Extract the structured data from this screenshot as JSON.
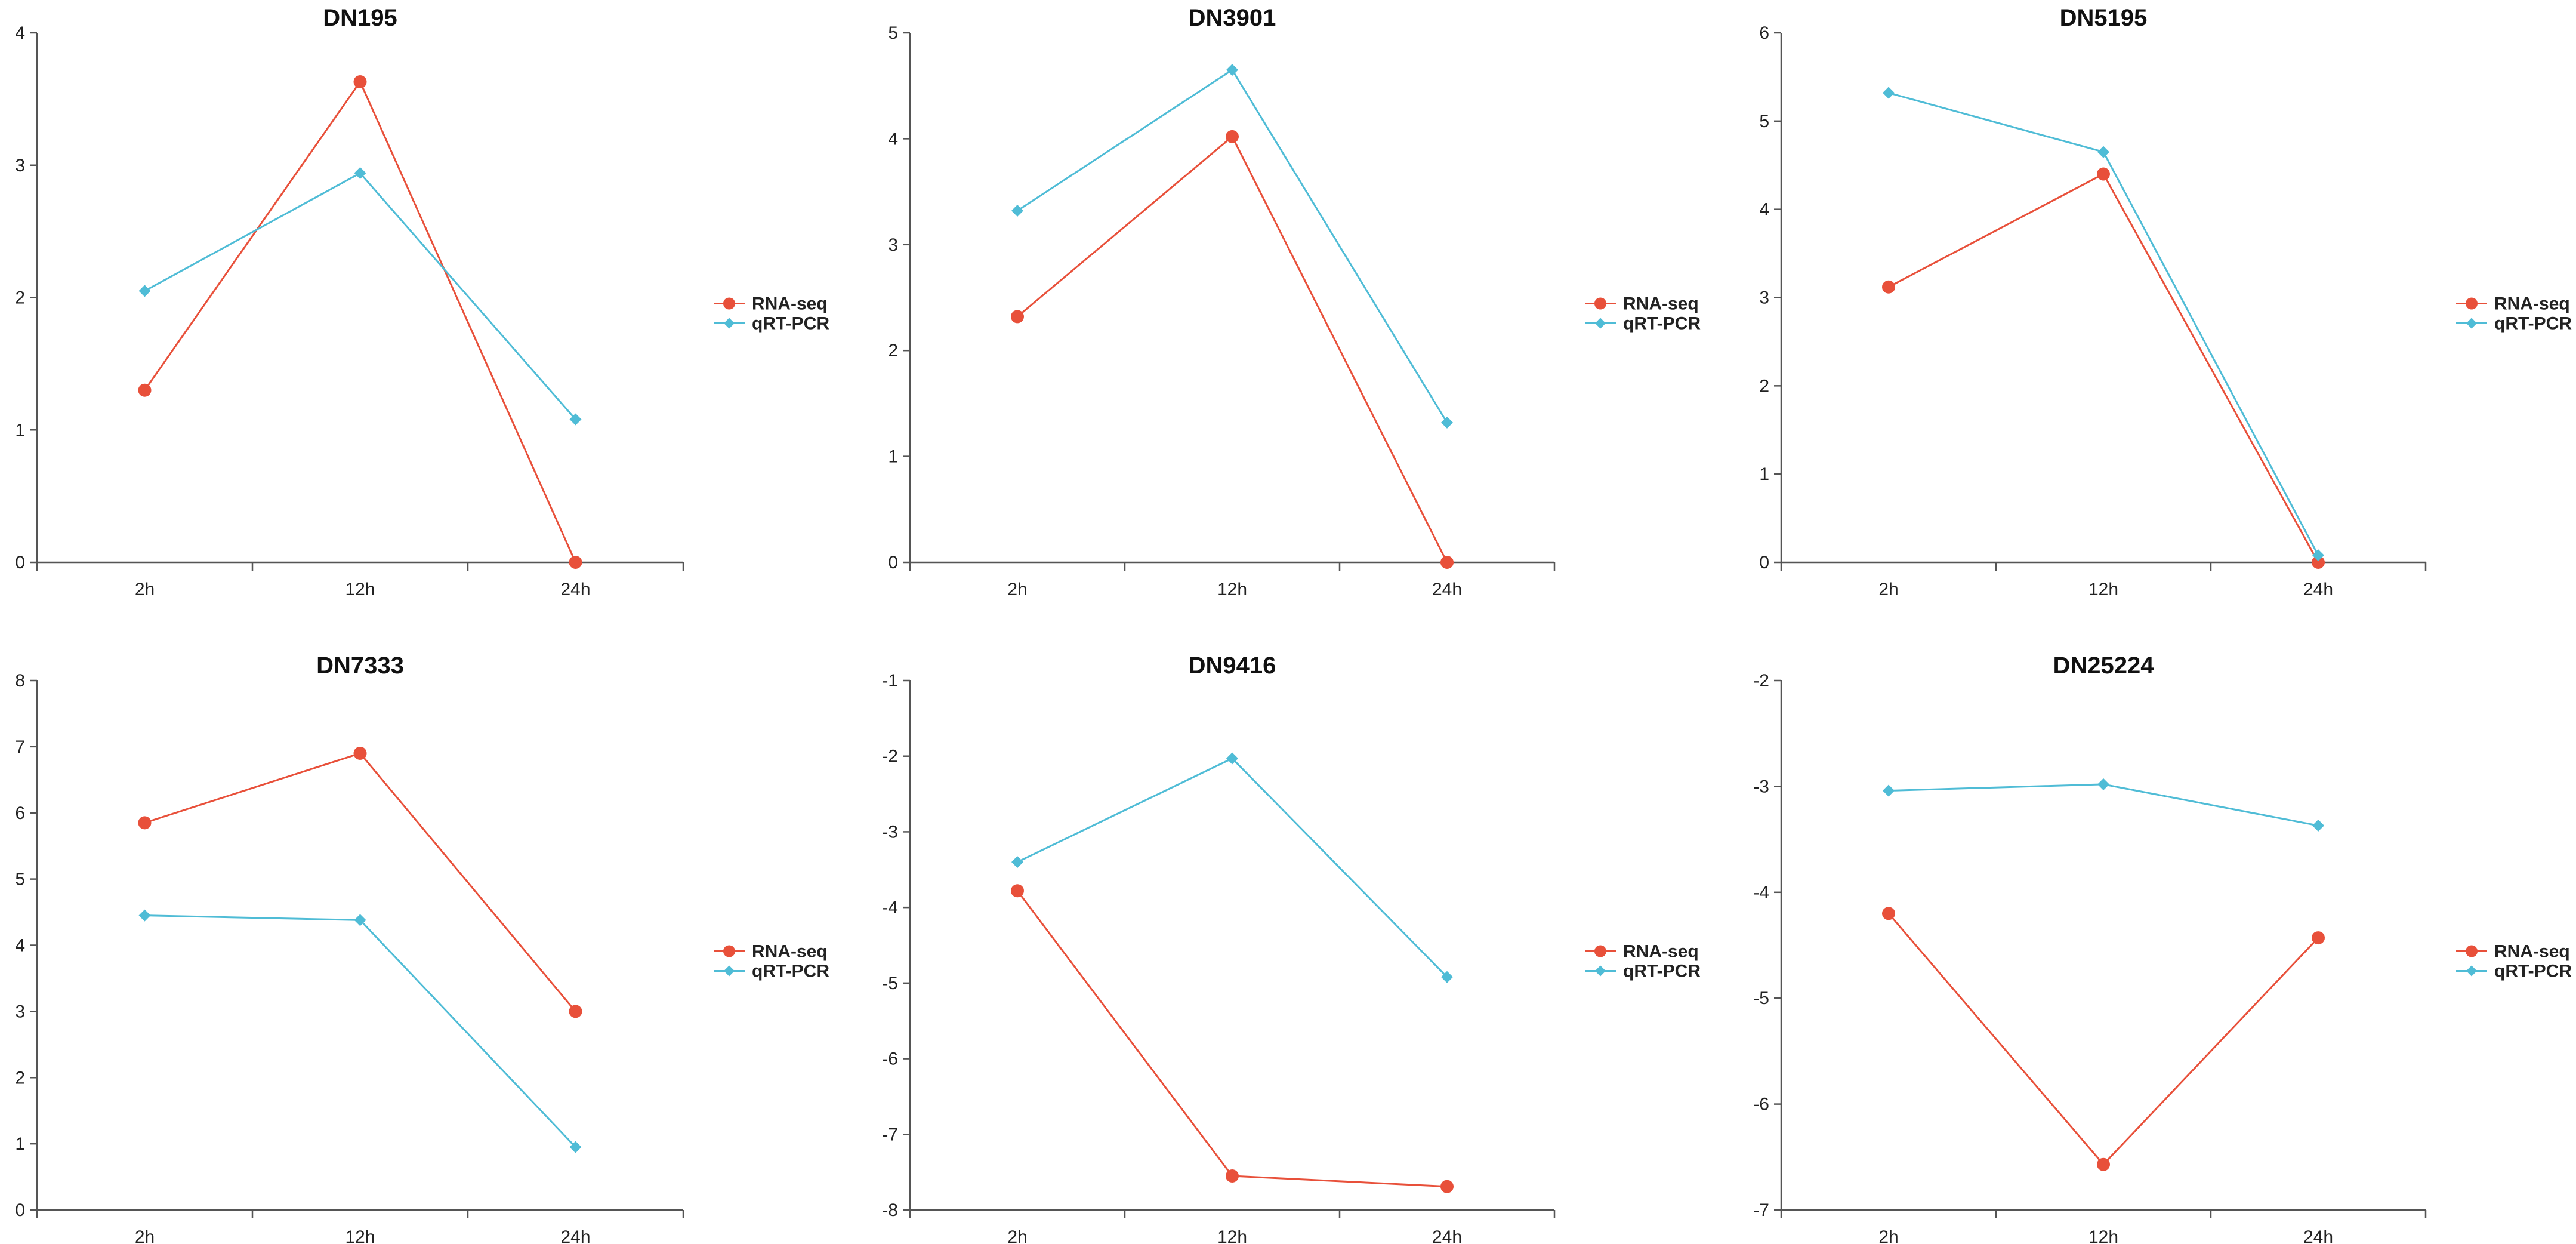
{
  "colors": {
    "rna_seq": "#e8503a",
    "qrt_pcr": "#4fbcd6",
    "axis": "#555555"
  },
  "legend": {
    "items": [
      "RNA-seq",
      "qRT-PCR"
    ],
    "placement": "right"
  },
  "chart_data": [
    {
      "type": "line",
      "title": "DN195",
      "categories": [
        "2h",
        "12h",
        "24h"
      ],
      "yticks": [
        "0",
        "1",
        "2",
        "3",
        "4"
      ],
      "ylim": [
        0,
        4
      ],
      "series": [
        {
          "name": "RNA-seq",
          "marker": "circle",
          "values": [
            1.3,
            3.63,
            0.0
          ]
        },
        {
          "name": "qRT-PCR",
          "marker": "diamond",
          "values": [
            2.05,
            2.94,
            1.08
          ]
        }
      ]
    },
    {
      "type": "line",
      "title": "DN3901",
      "categories": [
        "2h",
        "12h",
        "24h"
      ],
      "yticks": [
        "0",
        "1",
        "2",
        "3",
        "4",
        "5"
      ],
      "ylim": [
        0,
        5
      ],
      "series": [
        {
          "name": "RNA-seq",
          "marker": "circle",
          "values": [
            2.32,
            4.02,
            0.0
          ]
        },
        {
          "name": "qRT-PCR",
          "marker": "diamond",
          "values": [
            3.32,
            4.65,
            1.32
          ]
        }
      ]
    },
    {
      "type": "line",
      "title": "DN5195",
      "categories": [
        "2h",
        "12h",
        "24h"
      ],
      "yticks": [
        "0",
        "1",
        "2",
        "3",
        "4",
        "5",
        "6"
      ],
      "ylim": [
        0,
        6
      ],
      "series": [
        {
          "name": "RNA-seq",
          "marker": "circle",
          "values": [
            3.12,
            4.4,
            0.0
          ]
        },
        {
          "name": "qRT-PCR",
          "marker": "diamond",
          "values": [
            5.32,
            4.65,
            0.08
          ]
        }
      ]
    },
    {
      "type": "line",
      "title": "DN7333",
      "categories": [
        "2h",
        "12h",
        "24h"
      ],
      "yticks": [
        "0",
        "1",
        "2",
        "3",
        "4",
        "5",
        "6",
        "7",
        "8"
      ],
      "ylim": [
        0,
        8
      ],
      "series": [
        {
          "name": "RNA-seq",
          "marker": "circle",
          "values": [
            5.85,
            6.9,
            3.0
          ]
        },
        {
          "name": "qRT-PCR",
          "marker": "diamond",
          "values": [
            4.45,
            4.38,
            0.95
          ]
        }
      ]
    },
    {
      "type": "line",
      "title": "DN9416",
      "categories": [
        "2h",
        "12h",
        "24h"
      ],
      "yticks": [
        "-8",
        "-7",
        "-6",
        "-5",
        "-4",
        "-3",
        "-2",
        "-1"
      ],
      "ylim": [
        -8,
        -1
      ],
      "series": [
        {
          "name": "RNA-seq",
          "marker": "circle",
          "values": [
            -3.78,
            -7.55,
            -7.69
          ]
        },
        {
          "name": "qRT-PCR",
          "marker": "diamond",
          "values": [
            -3.4,
            -2.03,
            -4.92
          ]
        }
      ]
    },
    {
      "type": "line",
      "title": "DN25224",
      "categories": [
        "2h",
        "12h",
        "24h"
      ],
      "yticks": [
        "-7",
        "-6",
        "-5",
        "-4",
        "-3",
        "-2"
      ],
      "ylim": [
        -7,
        -2
      ],
      "series": [
        {
          "name": "RNA-seq",
          "marker": "circle",
          "values": [
            -4.2,
            -6.57,
            -4.43
          ]
        },
        {
          "name": "qRT-PCR",
          "marker": "diamond",
          "values": [
            -3.04,
            -2.98,
            -3.37
          ]
        }
      ]
    }
  ]
}
